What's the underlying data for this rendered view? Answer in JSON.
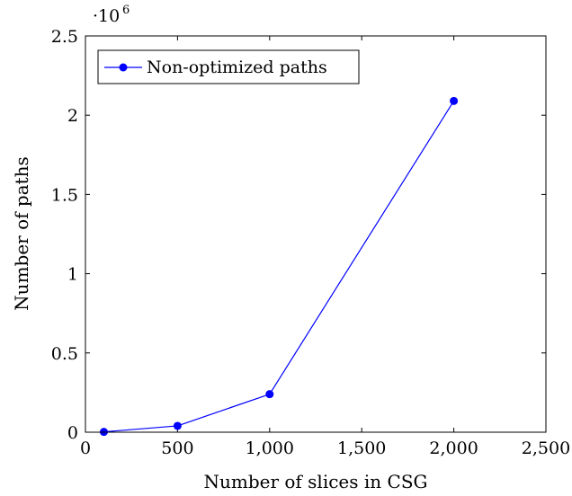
{
  "chart_data": {
    "type": "line",
    "xlabel": "Number of slices in CSG",
    "ylabel": "Number of paths",
    "xlim": [
      0,
      2500
    ],
    "ylim": [
      0,
      2.5
    ],
    "x_ticks": [
      {
        "value": 0,
        "label": "0"
      },
      {
        "value": 500,
        "label": "500"
      },
      {
        "value": 1000,
        "label": "1,000"
      },
      {
        "value": 1500,
        "label": "1,500"
      },
      {
        "value": 2000,
        "label": "2,000"
      },
      {
        "value": 2500,
        "label": "2,500"
      }
    ],
    "y_ticks": [
      {
        "value": 0,
        "label": "0"
      },
      {
        "value": 0.5,
        "label": "0.5"
      },
      {
        "value": 1,
        "label": "1"
      },
      {
        "value": 1.5,
        "label": "1.5"
      },
      {
        "value": 2,
        "label": "2"
      },
      {
        "value": 2.5,
        "label": "2.5"
      }
    ],
    "y_scale_base": "·10",
    "y_scale_exponent": "6",
    "grid": false,
    "legend_position": "top-left",
    "series": [
      {
        "name": "Non-optimized paths",
        "color": "#0000ff",
        "marker": "circle",
        "x": [
          100,
          500,
          1000,
          2000
        ],
        "y": [
          0.002,
          0.04,
          0.24,
          2.09
        ]
      }
    ]
  }
}
